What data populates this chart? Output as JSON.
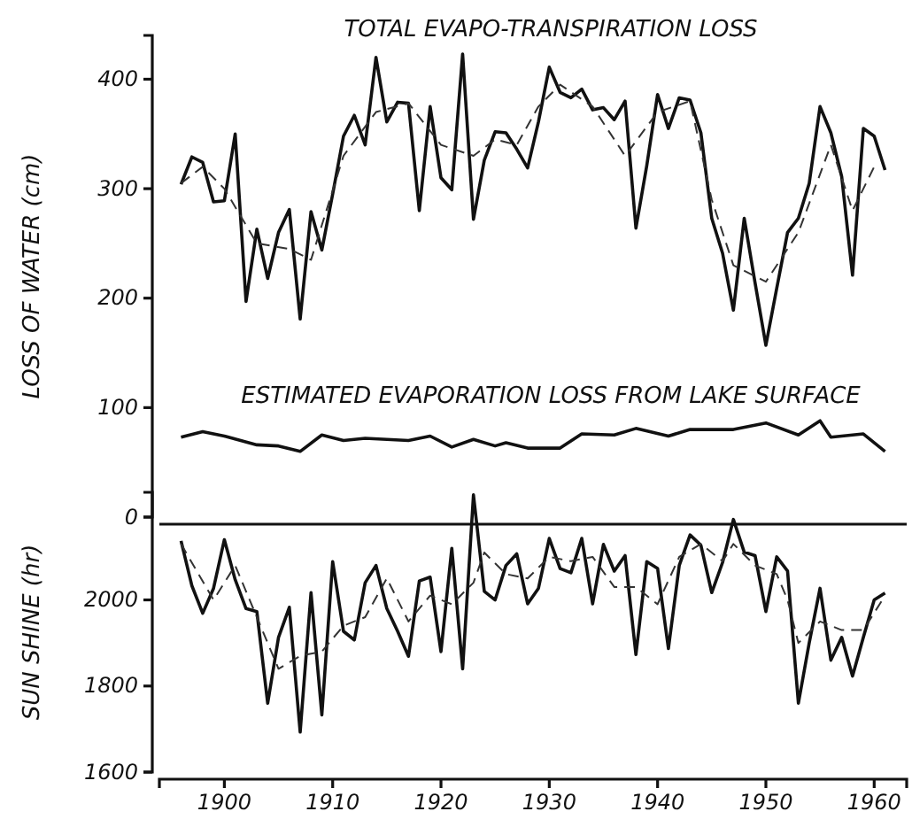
{
  "chart_data": [
    {
      "type": "line",
      "ylabel": "LOSS OF WATER (cm)",
      "xlim": [
        1894,
        1963
      ],
      "ylim": [
        0,
        440
      ],
      "yticks": [
        0,
        100,
        200,
        300,
        400
      ],
      "tick_labels": "y",
      "series": [
        {
          "name": "TOTAL EVAPO-TRANSPIRATION LOSS",
          "color": "#111111",
          "line_style": "solid",
          "x": [
            1896,
            1897,
            1898,
            1899,
            1900,
            1901,
            1902,
            1903,
            1904,
            1905,
            1906,
            1907,
            1908,
            1909,
            1910,
            1911,
            1912,
            1913,
            1914,
            1915,
            1916,
            1917,
            1918,
            1919,
            1920,
            1921,
            1922,
            1923,
            1924,
            1925,
            1926,
            1927,
            1928,
            1929,
            1930,
            1931,
            1932,
            1933,
            1934,
            1935,
            1936,
            1937,
            1938,
            1939,
            1940,
            1941,
            1942,
            1943,
            1944,
            1945,
            1946,
            1947,
            1948,
            1949,
            1950,
            1951,
            1952,
            1953,
            1954,
            1955,
            1956,
            1957,
            1958,
            1959,
            1960,
            1961
          ],
          "values": [
            304,
            329,
            324,
            288,
            289,
            350,
            197,
            263,
            218,
            260,
            281,
            181,
            279,
            244,
            295,
            348,
            367,
            340,
            420,
            361,
            379,
            378,
            280,
            375,
            310,
            299,
            423,
            272,
            326,
            352,
            351,
            336,
            319,
            361,
            411,
            388,
            383,
            391,
            372,
            374,
            363,
            380,
            264,
            321,
            386,
            355,
            383,
            381,
            351,
            273,
            241,
            189,
            273,
            214,
            157,
            209,
            260,
            273,
            305,
            375,
            351,
            311,
            221,
            355,
            348,
            317
          ]
        },
        {
          "color": "#333333",
          "line_style": "dashed",
          "x": [
            1896,
            1898,
            1900,
            1903,
            1906,
            1908,
            1911,
            1914,
            1917,
            1920,
            1923,
            1925,
            1927,
            1929,
            1931,
            1934,
            1937,
            1940,
            1943,
            1945,
            1947,
            1950,
            1953,
            1956,
            1958,
            1960
          ],
          "values": [
            305,
            320,
            300,
            250,
            245,
            235,
            330,
            370,
            378,
            340,
            330,
            345,
            340,
            375,
            395,
            375,
            330,
            370,
            380,
            290,
            230,
            215,
            260,
            340,
            280,
            320
          ]
        },
        {
          "name": "ESTIMATED EVAPORATION LOSS FROM LAKE SURFACE",
          "color": "#111111",
          "line_style": "solid",
          "x": [
            1896,
            1898,
            1900,
            1903,
            1905,
            1907,
            1909,
            1911,
            1913,
            1917,
            1919,
            1921,
            1923,
            1925,
            1926,
            1928,
            1931,
            1933,
            1936,
            1938,
            1941,
            1943,
            1947,
            1950,
            1953,
            1955,
            1956,
            1959,
            1961
          ],
          "values": [
            73,
            78,
            74,
            66,
            65,
            60,
            75,
            70,
            72,
            70,
            74,
            64,
            71,
            65,
            68,
            63,
            63,
            76,
            75,
            81,
            74,
            80,
            80,
            86,
            75,
            88,
            73,
            76,
            60
          ]
        }
      ]
    },
    {
      "type": "line",
      "ylabel": "SUN SHINE (hr)",
      "xlim": [
        1894,
        1963
      ],
      "xticks": [
        1900,
        1910,
        1920,
        1930,
        1940,
        1950,
        1960
      ],
      "ylim": [
        1600,
        2250
      ],
      "yticks": [
        1600,
        1800,
        2000
      ],
      "series": [
        {
          "color": "#111111",
          "line_style": "solid",
          "x": [
            1896,
            1897,
            1898,
            1899,
            1900,
            1901,
            1902,
            1903,
            1904,
            1905,
            1906,
            1907,
            1908,
            1909,
            1910,
            1911,
            1912,
            1913,
            1914,
            1915,
            1916,
            1917,
            1918,
            1919,
            1920,
            1921,
            1922,
            1923,
            1924,
            1925,
            1926,
            1927,
            1928,
            1929,
            1930,
            1931,
            1932,
            1933,
            1934,
            1935,
            1936,
            1937,
            1938,
            1939,
            1940,
            1941,
            1942,
            1943,
            1944,
            1945,
            1946,
            1947,
            1948,
            1949,
            1950,
            1951,
            1952,
            1953,
            1954,
            1955,
            1956,
            1957,
            1958,
            1959,
            1960,
            1961
          ],
          "values": [
            2137,
            2033,
            1969,
            2027,
            2140,
            2047,
            1980,
            1973,
            1760,
            1913,
            1983,
            1693,
            2017,
            1733,
            2089,
            1927,
            1907,
            2040,
            2080,
            1980,
            1927,
            1869,
            2044,
            2053,
            1880,
            2120,
            1840,
            2244,
            2020,
            2000,
            2080,
            2107,
            1991,
            2027,
            2143,
            2073,
            2063,
            2143,
            1991,
            2129,
            2067,
            2103,
            1873,
            2089,
            2073,
            1887,
            2080,
            2151,
            2127,
            2017,
            2087,
            2187,
            2111,
            2103,
            1973,
            2100,
            2067,
            1760,
            1900,
            2027,
            1860,
            1913,
            1823,
            1913,
            2000,
            2016
          ]
        },
        {
          "color": "#333333",
          "line_style": "dashed",
          "x": [
            1896,
            1899,
            1901,
            1903,
            1905,
            1907,
            1909,
            1911,
            1913,
            1915,
            1917,
            1919,
            1921,
            1923,
            1924,
            1926,
            1928,
            1930,
            1932,
            1934,
            1936,
            1938,
            1940,
            1942,
            1944,
            1946,
            1947,
            1949,
            1951,
            1952,
            1953,
            1955,
            1957,
            1959,
            1961
          ],
          "values": [
            2130,
            2000,
            2080,
            1960,
            1840,
            1870,
            1880,
            1940,
            1960,
            2050,
            1950,
            2010,
            1990,
            2040,
            2110,
            2060,
            2050,
            2100,
            2090,
            2100,
            2030,
            2030,
            1990,
            2100,
            2130,
            2090,
            2130,
            2080,
            2060,
            2000,
            1900,
            1950,
            1930,
            1930,
            2010
          ]
        }
      ]
    }
  ]
}
